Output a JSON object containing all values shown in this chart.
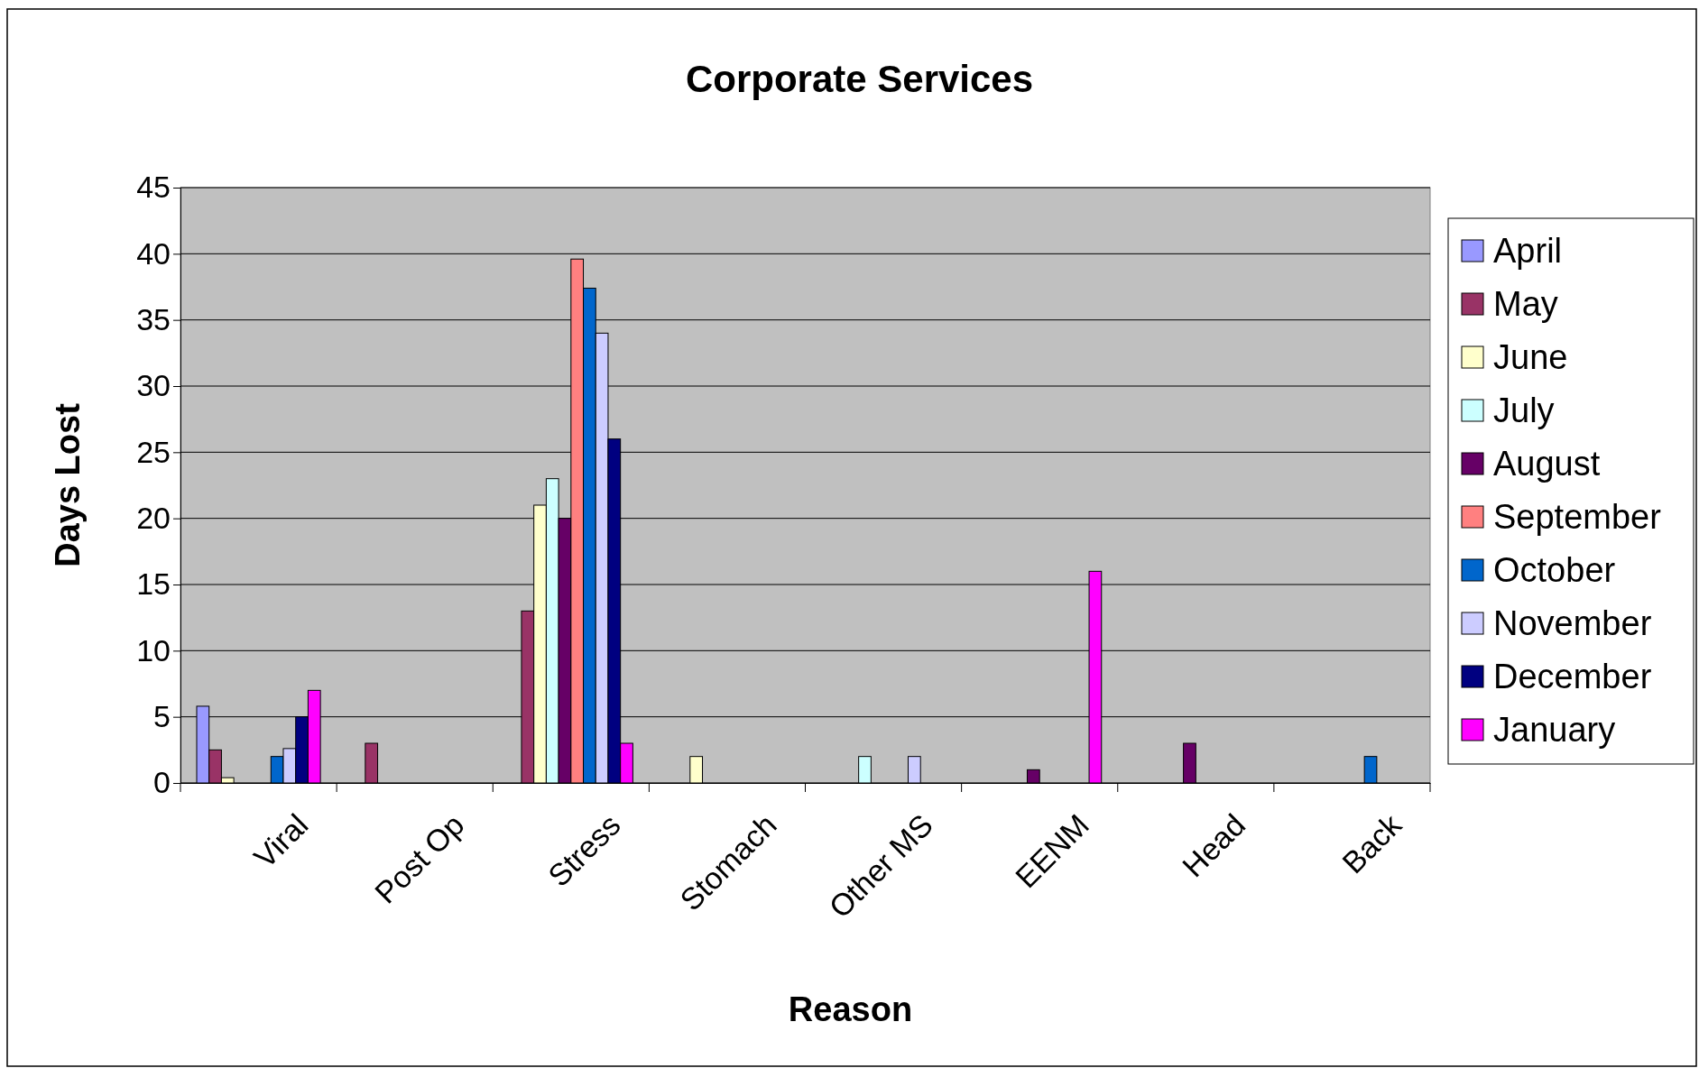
{
  "chart_data": {
    "type": "bar",
    "title": "Corporate Services",
    "xlabel": "Reason",
    "ylabel": "Days Lost",
    "categories": [
      "Viral",
      "Post Op",
      "Stress",
      "Stomach",
      "Other MS",
      "EENM",
      "Head",
      "Back"
    ],
    "series": [
      {
        "name": "April",
        "color": "#9999ff",
        "values": [
          5.8,
          null,
          null,
          null,
          null,
          null,
          null,
          null
        ]
      },
      {
        "name": "May",
        "color": "#993366",
        "values": [
          2.5,
          3,
          13,
          null,
          null,
          null,
          null,
          null
        ]
      },
      {
        "name": "June",
        "color": "#ffffcc",
        "values": [
          0.4,
          null,
          21,
          2,
          null,
          null,
          null,
          null
        ]
      },
      {
        "name": "July",
        "color": "#ccffff",
        "values": [
          null,
          null,
          23,
          null,
          2,
          null,
          null,
          null
        ]
      },
      {
        "name": "August",
        "color": "#660066",
        "values": [
          null,
          null,
          20,
          null,
          null,
          1,
          3,
          null
        ]
      },
      {
        "name": "September",
        "color": "#ff8080",
        "values": [
          null,
          null,
          39.6,
          null,
          null,
          null,
          null,
          null
        ]
      },
      {
        "name": "October",
        "color": "#0066cc",
        "values": [
          2,
          null,
          37.4,
          null,
          null,
          null,
          null,
          2
        ]
      },
      {
        "name": "November",
        "color": "#ccccff",
        "values": [
          2.6,
          null,
          34,
          null,
          2,
          null,
          null,
          null
        ]
      },
      {
        "name": "December",
        "color": "#000080",
        "values": [
          5,
          null,
          26,
          null,
          null,
          null,
          null,
          null
        ]
      },
      {
        "name": "January",
        "color": "#ff00ff",
        "values": [
          7,
          null,
          3,
          null,
          null,
          16,
          null,
          null
        ]
      }
    ],
    "ylim": [
      0,
      45
    ],
    "yticks": [
      0,
      5,
      10,
      15,
      20,
      25,
      30,
      35,
      40,
      45
    ],
    "grid": "y",
    "legend": "right"
  }
}
